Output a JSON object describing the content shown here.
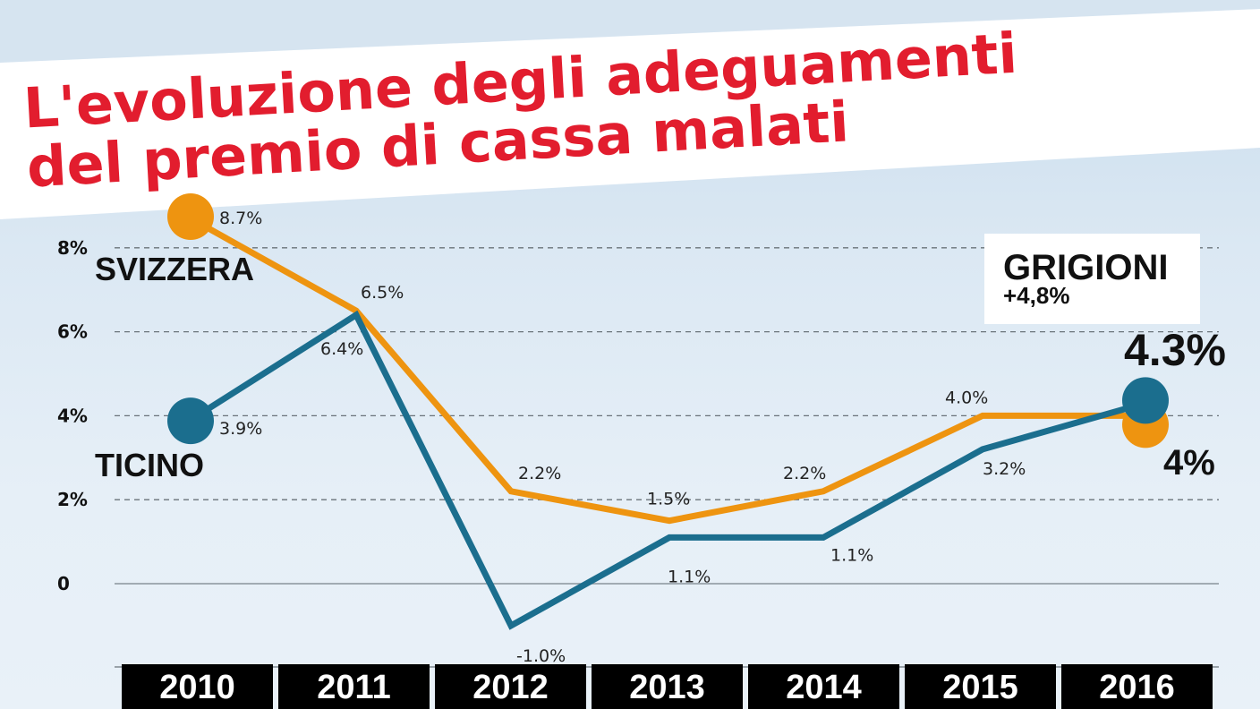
{
  "title_line1": "L'evoluzione degli adeguamenti",
  "title_line2": "del premio di cassa malati",
  "colors": {
    "title": "#e21d2e",
    "svizzera": "#ee9410",
    "ticino": "#1b6e8e",
    "year_bar": "#000000"
  },
  "grigioni_box": {
    "name": "GRIGIONI",
    "value": "+4,8%"
  },
  "final_labels": {
    "ticino": "4.3%",
    "svizzera": "4%"
  },
  "chart_data": {
    "type": "line",
    "title": "L'evoluzione degli adeguamenti del premio di cassa malati",
    "categories": [
      "2010",
      "2011",
      "2012",
      "2013",
      "2014",
      "2015",
      "2016"
    ],
    "ylim": [
      -2,
      8.7
    ],
    "yticks": [
      {
        "value": 8,
        "label": "8%"
      },
      {
        "value": 6,
        "label": "6%"
      },
      {
        "value": 4,
        "label": "4%"
      },
      {
        "value": 2,
        "label": "2%"
      },
      {
        "value": 0,
        "label": "0"
      }
    ],
    "grid": true,
    "series": [
      {
        "name": "SVIZZERA",
        "color": "#ee9410",
        "values": [
          8.7,
          6.5,
          2.2,
          1.5,
          2.2,
          4.0,
          4.0
        ],
        "labels": [
          "8.7%",
          "6.5%",
          "2.2%",
          "1.5%",
          "2.2%",
          "4.0%",
          ""
        ]
      },
      {
        "name": "TICINO",
        "color": "#1b6e8e",
        "values": [
          3.9,
          6.4,
          -1.0,
          1.1,
          1.1,
          3.2,
          4.3
        ],
        "labels": [
          "3.9%",
          "6.4%",
          "-1.0%",
          "1.1%",
          "1.1%",
          "3.2%",
          ""
        ]
      }
    ]
  }
}
